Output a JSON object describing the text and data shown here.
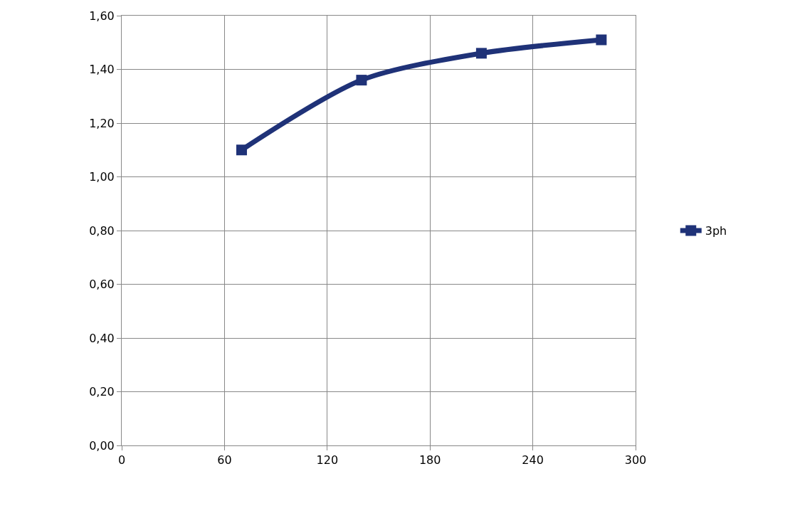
{
  "chart_data": {
    "type": "line",
    "x": [
      70,
      140,
      210,
      280
    ],
    "series": [
      {
        "name": "3ph",
        "color": "#1f3278",
        "values": [
          1.1,
          1.36,
          1.46,
          1.51
        ]
      }
    ],
    "xlim": [
      0,
      300
    ],
    "xticks": [
      0,
      60,
      120,
      180,
      240,
      300
    ],
    "ylim": [
      0,
      1.6
    ],
    "yticks": [
      {
        "value": 0,
        "label": "0,00"
      },
      {
        "value": 0.2,
        "label": "0,20"
      },
      {
        "value": 0.4,
        "label": "0,40"
      },
      {
        "value": 0.6,
        "label": "0,60"
      },
      {
        "value": 0.8,
        "label": "0,80"
      },
      {
        "value": 1.0,
        "label": "1,00"
      },
      {
        "value": 1.2,
        "label": "1,20"
      },
      {
        "value": 1.4,
        "label": "1,40"
      },
      {
        "value": 1.6,
        "label": "1,60"
      }
    ],
    "grid": true,
    "legend": "right",
    "marker": "square",
    "line_style": "solid"
  }
}
